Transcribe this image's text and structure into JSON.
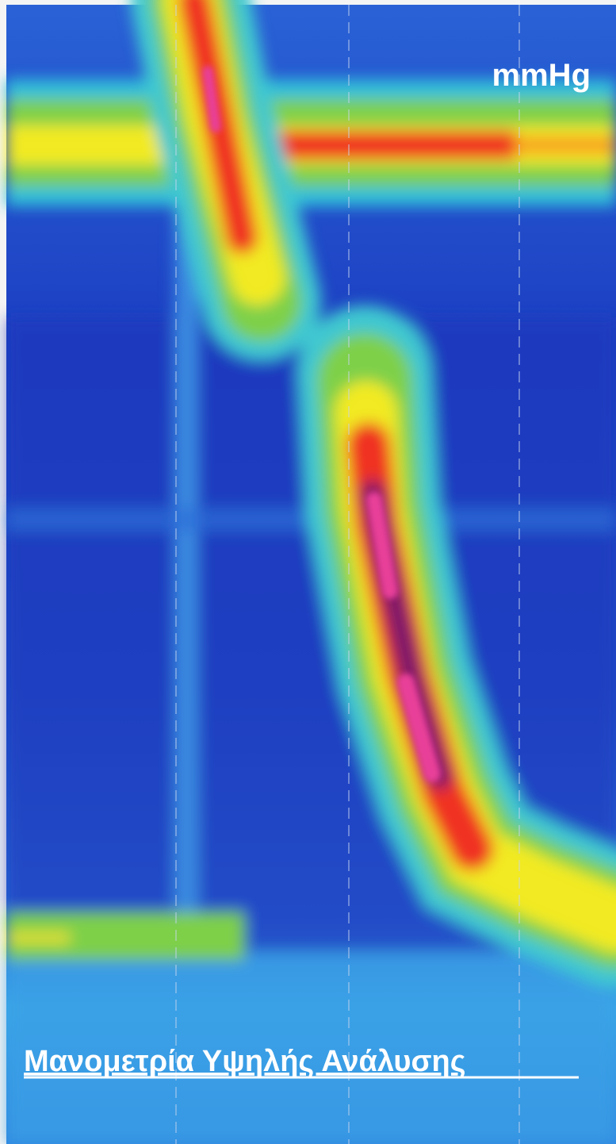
{
  "unit_label": "mmHg",
  "caption": "Μανομετρία Υψηλής Ανάλυσης"
}
